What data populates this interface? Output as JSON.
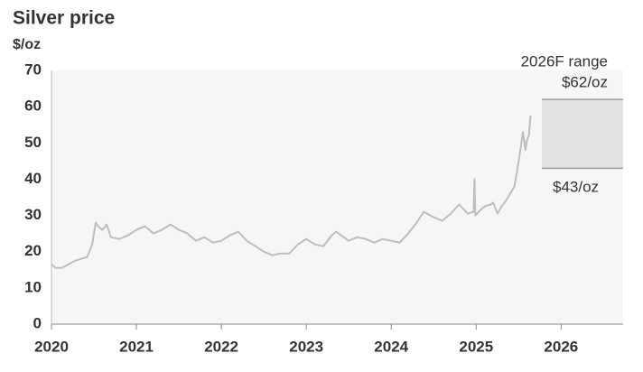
{
  "chart_data": {
    "type": "line",
    "title": "Silver price",
    "y_label": "$/oz",
    "x": [
      2020.0,
      2020.05,
      2020.12,
      2020.2,
      2020.28,
      2020.35,
      2020.42,
      2020.48,
      2020.52,
      2020.55,
      2020.6,
      2020.65,
      2020.7,
      2020.8,
      2020.9,
      2021.0,
      2021.1,
      2021.2,
      2021.3,
      2021.4,
      2021.5,
      2021.6,
      2021.7,
      2021.8,
      2021.9,
      2022.0,
      2022.1,
      2022.2,
      2022.3,
      2022.4,
      2022.5,
      2022.6,
      2022.7,
      2022.8,
      2022.9,
      2023.0,
      2023.1,
      2023.2,
      2023.3,
      2023.35,
      2023.5,
      2023.6,
      2023.7,
      2023.8,
      2023.9,
      2024.0,
      2024.1,
      2024.2,
      2024.3,
      2024.38,
      2024.5,
      2024.6,
      2024.7,
      2024.8,
      2024.9,
      2024.97,
      2024.98,
      2024.99,
      2025.05,
      2025.1,
      2025.17,
      2025.2,
      2025.25,
      2025.3,
      2025.35,
      2025.4,
      2025.45,
      2025.48,
      2025.52,
      2025.55,
      2025.58,
      2025.6,
      2025.62,
      2025.64
    ],
    "series": [
      {
        "name": "Silver price",
        "color": "#bdbdbd",
        "values": [
          16.5,
          15.5,
          15.5,
          16.5,
          17.5,
          18,
          18.5,
          22,
          28,
          27,
          26,
          27.5,
          24,
          23.5,
          24.5,
          26,
          27,
          25,
          26,
          27.5,
          26,
          25,
          23,
          24,
          22.5,
          23,
          24.5,
          25.5,
          23,
          21.5,
          20,
          19,
          19.5,
          19.5,
          22,
          23.5,
          22,
          21.5,
          24.5,
          25.5,
          23,
          24,
          23.5,
          22.5,
          23.5,
          23,
          22.5,
          25,
          28,
          31,
          29.5,
          28.5,
          30.5,
          33,
          30.5,
          31,
          40,
          30,
          31.5,
          32.5,
          33,
          33.5,
          30.5,
          32.5,
          34,
          36,
          38,
          42,
          48,
          53,
          48,
          51,
          52,
          57.5
        ]
      }
    ],
    "xlim": [
      2020,
      2026.73
    ],
    "xticks": [
      2020,
      2021,
      2022,
      2023,
      2024,
      2025,
      2026
    ],
    "ylim": [
      0,
      70
    ],
    "yticks": [
      0,
      10,
      20,
      30,
      40,
      50,
      60,
      70
    ],
    "range": {
      "label": "2026F range",
      "low": 43,
      "high": 62,
      "low_label": "$43/oz",
      "high_label": "$62/oz",
      "color": "#e3e3e3"
    }
  }
}
